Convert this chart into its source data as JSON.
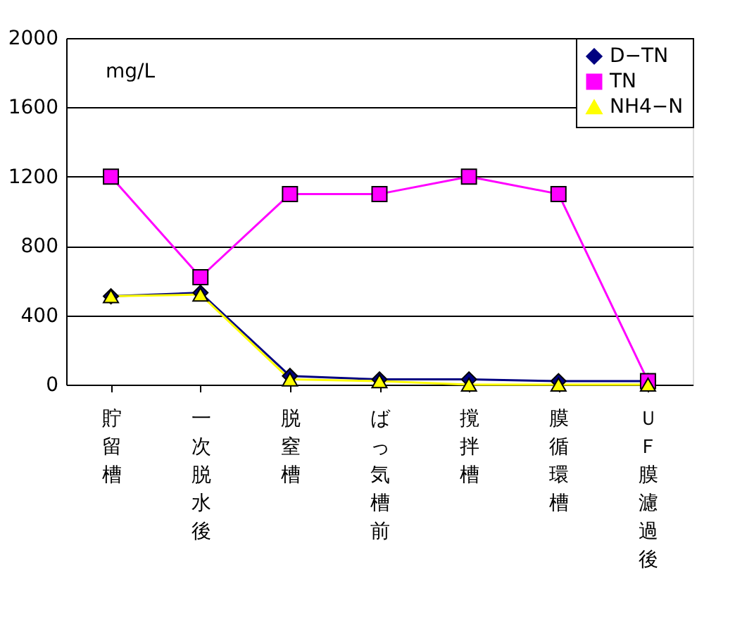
{
  "chart_data": {
    "type": "line",
    "ylabel": "mg/L",
    "categories": [
      "貯留槽",
      "一次脱水後",
      "脱窒槽",
      "ばっ気槽前",
      "撹拌槽",
      "膜循環槽",
      "ＵＦ膜濾過後"
    ],
    "series": [
      {
        "name": "D−TN",
        "color": "#000080",
        "marker": "diamond",
        "values": [
          510,
          530,
          50,
          30,
          30,
          20,
          20
        ]
      },
      {
        "name": "TN",
        "color": "#ff00ff",
        "marker": "square",
        "values": [
          1200,
          620,
          1100,
          1100,
          1200,
          1100,
          20
        ]
      },
      {
        "name": "NH4−N",
        "color": "#ffff00",
        "marker": "triangle",
        "values": [
          510,
          520,
          30,
          20,
          0,
          0,
          0
        ]
      }
    ],
    "ylim": [
      0,
      2000
    ],
    "yticks": [
      0,
      400,
      800,
      1200,
      1600,
      2000
    ],
    "grid": "y",
    "legend": "top right"
  }
}
